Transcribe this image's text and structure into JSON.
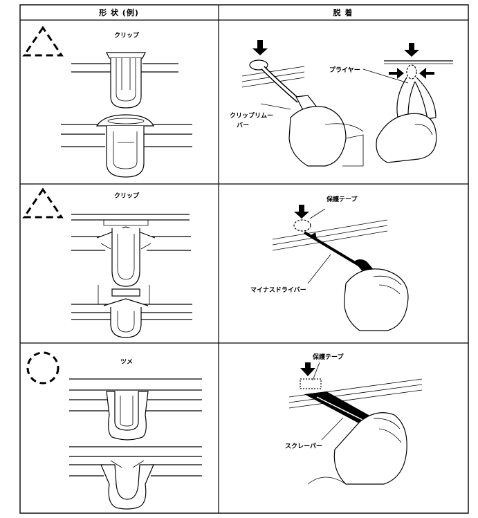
{
  "header": {
    "shape_example": "形 状 (例)",
    "removal": "脱 着"
  },
  "rows": [
    {
      "mark": "triangle",
      "shape_label": "クリップ",
      "callouts": [
        "プライヤー",
        "クリップリムー",
        "バー"
      ]
    },
    {
      "mark": "triangle",
      "shape_label": "クリップ",
      "callouts": [
        "保護テープ",
        "マイナスドライバー"
      ]
    },
    {
      "mark": "circle",
      "shape_label": "ツメ",
      "callouts": [
        "保護テープ",
        "スクレーパー"
      ]
    }
  ]
}
